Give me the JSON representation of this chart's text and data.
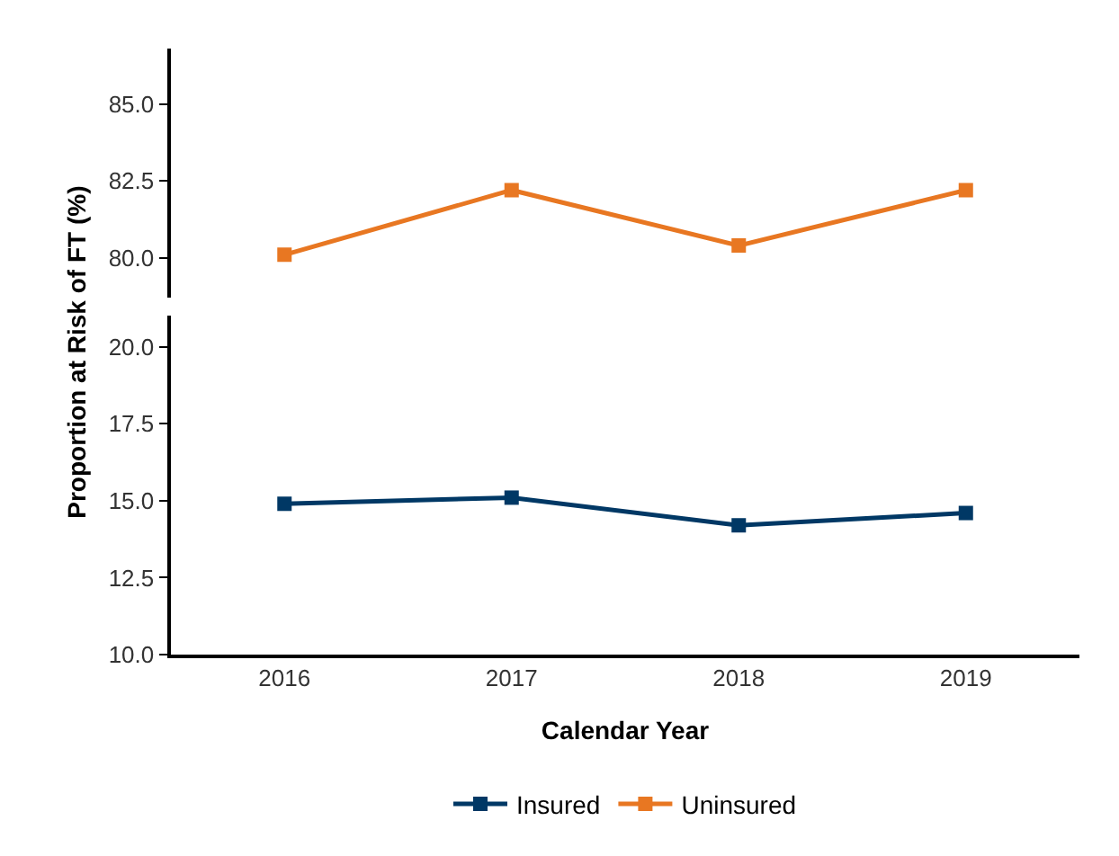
{
  "chart_data": [
    {
      "type": "line",
      "ylabel": "Proportion at Risk of FT (%)",
      "categories": [
        "2016",
        "2017",
        "2018",
        "2019"
      ],
      "ylim": [
        78.7,
        86.8
      ],
      "yticks": [
        {
          "value": 80,
          "label": "80.0"
        },
        {
          "value": 82.5,
          "label": "82.5"
        },
        {
          "value": 85,
          "label": "85.0"
        }
      ],
      "tick_labels": "y",
      "marker": "square",
      "line_style": "solid",
      "series": [
        {
          "name": "Uninsured",
          "color": "#e87722",
          "values": [
            80.1,
            82.2,
            80.4,
            82.2
          ]
        }
      ]
    },
    {
      "type": "line",
      "xlabel": "Calendar Year",
      "categories": [
        "2016",
        "2017",
        "2018",
        "2019"
      ],
      "ylim": [
        10,
        21
      ],
      "yticks": [
        {
          "value": 10,
          "label": "10.0"
        },
        {
          "value": 12.5,
          "label": "12.5"
        },
        {
          "value": 15,
          "label": "15.0"
        },
        {
          "value": 17.5,
          "label": "17.5"
        },
        {
          "value": 20,
          "label": "20.0"
        }
      ],
      "marker": "square",
      "line_style": "solid",
      "legend": "bottom",
      "series": [
        {
          "name": "Insured",
          "color": "#003865",
          "values": [
            14.9,
            15.1,
            14.2,
            14.6
          ]
        }
      ]
    }
  ]
}
